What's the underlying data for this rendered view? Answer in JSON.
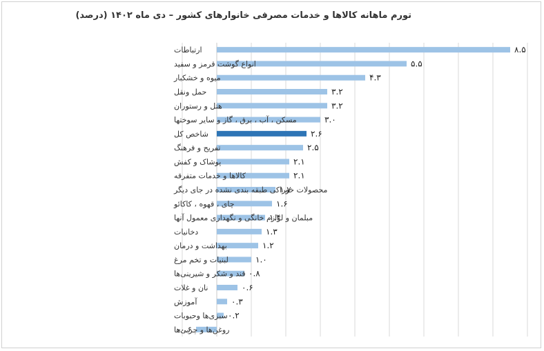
{
  "chart_data": {
    "type": "bar",
    "orientation": "horizontal",
    "title": "تورم ماهانه کالاها و خدمات مصرفی خانوارهای کشور – دی ماه ۱۴۰۲ (درصد)",
    "xlabel": "",
    "ylabel": "",
    "xlim": [
      -1.0,
      9.0
    ],
    "grid": true,
    "legend": "none",
    "bar_color": "#9dc3e6",
    "highlight_color": "#2e75b6",
    "highlight_category": "شاخص کل",
    "categories": [
      "ارتباطات",
      "انواع گوشت قرمز و سفید",
      "میوه و خشکبار",
      "حمل ونقل",
      "هتل و رستوران",
      "مسکن ، آب ، برق ، گاز و سایر سوختها",
      "شاخص کل",
      "تفریح و فرهنگ",
      "پوشاک و کفش",
      "کالاها و خدمات متفرقه",
      "محصولات خوراکی طبقه بندی نشده در جای دیگر",
      "چای ، قهوه ، کاکائو",
      "مبلمان و لوازم خانگی و نگهداری معمول آنها",
      "دخانیات",
      "بهداشت و درمان",
      "لبنیات و تخم مرغ",
      "قند و شکر و شیرینی‌ها",
      "نان و غلات",
      "آموزش",
      "سبزی‌ها وحبوبات",
      "روغن‌ها و چربی‌ها"
    ],
    "values": [
      8.5,
      5.5,
      4.3,
      3.2,
      3.2,
      3.0,
      2.6,
      2.5,
      2.1,
      2.1,
      1.7,
      1.6,
      1.4,
      1.3,
      1.2,
      1.0,
      0.8,
      0.6,
      0.3,
      0.2,
      -0.6
    ],
    "value_labels": [
      "۸.۵",
      "۵.۵",
      "۴.۳",
      "۳.۲",
      "۳.۲",
      "۳.۰",
      "۲.۶",
      "۲.۵",
      "۲.۱",
      "۲.۱",
      "۱.۷",
      "۱.۶",
      "۱.۴",
      "۱.۳",
      "۱.۲",
      "۱.۰",
      "۰.۸",
      "۰.۶",
      "۰.۳",
      "۰.۲",
      "-۰.۶"
    ]
  }
}
